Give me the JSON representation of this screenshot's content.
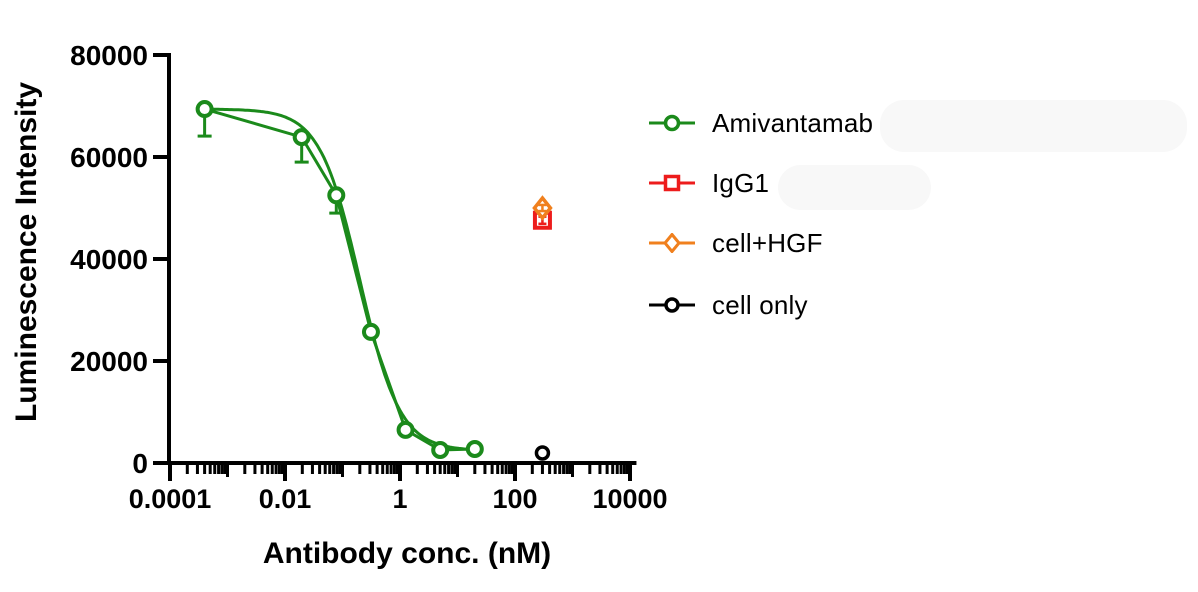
{
  "figure": {
    "background": "#ffffff",
    "axis_color": "#000000"
  },
  "chart_data": {
    "type": "line",
    "title": "",
    "xlabel": "Antibody conc. (nM)",
    "ylabel": "Luminescence Intensity",
    "x_scale": "log",
    "x_log_range": [
      -4,
      4.06
    ],
    "ylim": [
      0,
      80000
    ],
    "grid": false,
    "legend_position": "right",
    "x_ticks": [
      {
        "value": 0.0001,
        "label": "0.0001"
      },
      {
        "value": 0.01,
        "label": "0.01"
      },
      {
        "value": 1,
        "label": "1"
      },
      {
        "value": 100,
        "label": "100"
      },
      {
        "value": 10000,
        "label": "10000"
      }
    ],
    "y_ticks": [
      {
        "value": 0,
        "label": "0"
      },
      {
        "value": 20000,
        "label": "20000"
      },
      {
        "value": 40000,
        "label": "40000"
      },
      {
        "value": 60000,
        "label": "60000"
      },
      {
        "value": 80000,
        "label": "80000"
      }
    ],
    "series": [
      {
        "name": "Amivantamab",
        "color": "#1b8a1b",
        "marker": "circle",
        "has_fit_curve": true,
        "fit": {
          "top": 69400,
          "bottom": 2400,
          "ec50": 0.2,
          "hill": 1.25
        },
        "points": [
          {
            "x": 0.0004,
            "y": 69400,
            "err_lower": 5300
          },
          {
            "x": 0.0195,
            "y": 63900,
            "err_lower": 4900
          },
          {
            "x": 0.078,
            "y": 52500,
            "err_lower": 3500
          },
          {
            "x": 0.3125,
            "y": 25700
          },
          {
            "x": 1.25,
            "y": 6500
          },
          {
            "x": 5,
            "y": 2550
          },
          {
            "x": 20,
            "y": 2750
          }
        ]
      },
      {
        "name": "IgG1",
        "color": "#ed1c1c",
        "marker": "square",
        "err_over_marker": true,
        "points": [
          {
            "x": 300,
            "y": 47600,
            "err_lower": 700,
            "err_upper": 700
          }
        ]
      },
      {
        "name": "cell+HGF",
        "color": "#f0801e",
        "marker": "diamond",
        "err_over_marker": true,
        "points": [
          {
            "x": 300,
            "y": 50000,
            "err_lower": 600,
            "err_upper": 600
          }
        ]
      },
      {
        "name": "cell only",
        "color": "#000000",
        "marker": "circle-small",
        "points": [
          {
            "x": 300,
            "y": 1960
          }
        ]
      }
    ]
  }
}
